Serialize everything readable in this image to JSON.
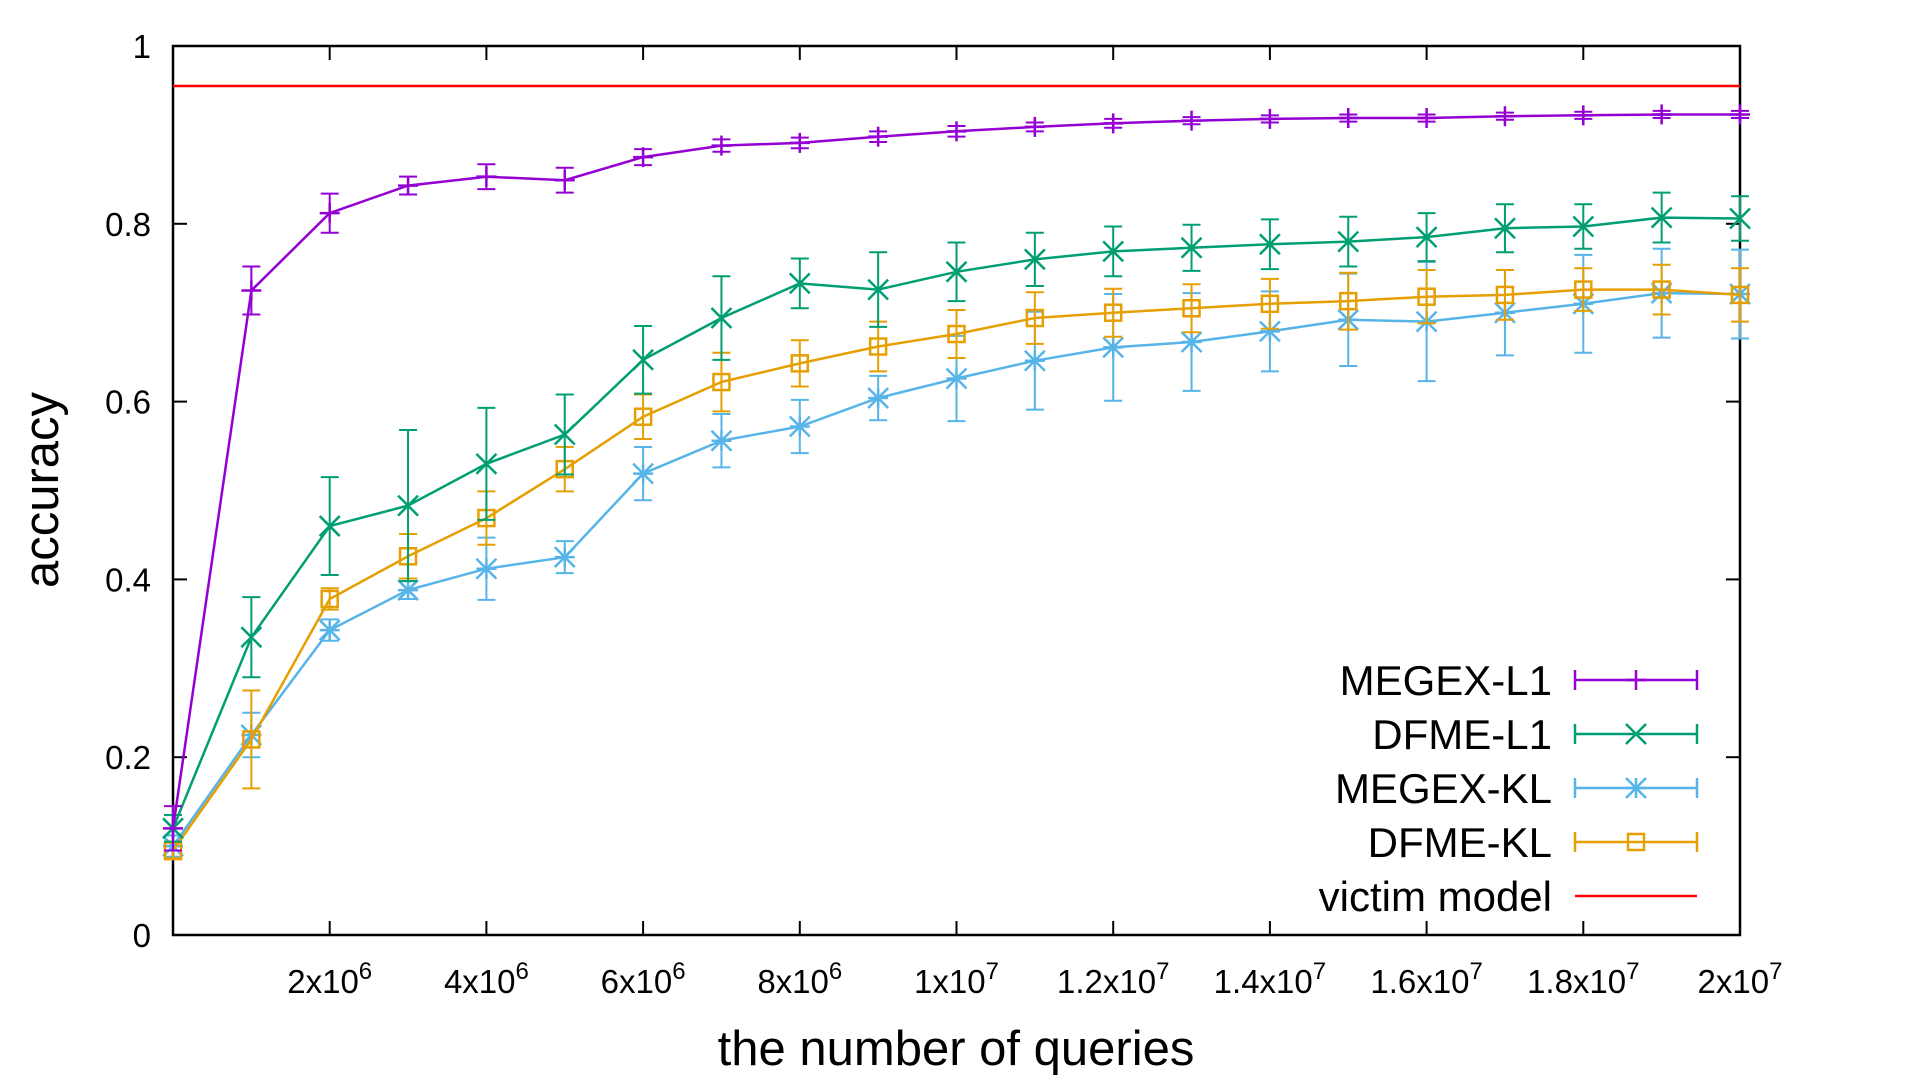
{
  "chart_data": {
    "type": "line",
    "title": "",
    "xlabel": "the number of queries",
    "ylabel": "accuracy",
    "xlim": [
      0,
      20000000
    ],
    "ylim": [
      0,
      1
    ],
    "x_ticks": [
      {
        "value": 2000000,
        "base": "2x10",
        "exp": "6"
      },
      {
        "value": 4000000,
        "base": "4x10",
        "exp": "6"
      },
      {
        "value": 6000000,
        "base": "6x10",
        "exp": "6"
      },
      {
        "value": 8000000,
        "base": "8x10",
        "exp": "6"
      },
      {
        "value": 10000000,
        "base": "1x10",
        "exp": "7"
      },
      {
        "value": 12000000,
        "base": "1.2x10",
        "exp": "7"
      },
      {
        "value": 14000000,
        "base": "1.4x10",
        "exp": "7"
      },
      {
        "value": 16000000,
        "base": "1.6x10",
        "exp": "7"
      },
      {
        "value": 18000000,
        "base": "1.8x10",
        "exp": "7"
      },
      {
        "value": 20000000,
        "base": "2x10",
        "exp": "7"
      }
    ],
    "y_ticks": [
      {
        "value": 0,
        "label": "0"
      },
      {
        "value": 0.2,
        "label": "0.2"
      },
      {
        "value": 0.4,
        "label": "0.4"
      },
      {
        "value": 0.6,
        "label": "0.6"
      },
      {
        "value": 0.8,
        "label": "0.8"
      },
      {
        "value": 1,
        "label": "1"
      }
    ],
    "grid": false,
    "legend_position": "bottom-right",
    "x": [
      0,
      1000000,
      2000000,
      3000000,
      4000000,
      5000000,
      6000000,
      7000000,
      8000000,
      9000000,
      10000000,
      11000000,
      12000000,
      13000000,
      14000000,
      15000000,
      16000000,
      17000000,
      18000000,
      19000000,
      20000000
    ],
    "series": [
      {
        "name": "MEGEX-L1",
        "color": "#9400d3",
        "marker": "plus",
        "values": [
          0.12,
          0.725,
          0.812,
          0.843,
          0.853,
          0.849,
          0.875,
          0.888,
          0.891,
          0.898,
          0.904,
          0.909,
          0.913,
          0.916,
          0.918,
          0.919,
          0.919,
          0.921,
          0.922,
          0.923,
          0.923
        ],
        "errors": [
          0.025,
          0.027,
          0.022,
          0.01,
          0.014,
          0.014,
          0.009,
          0.007,
          0.006,
          0.006,
          0.006,
          0.005,
          0.005,
          0.004,
          0.004,
          0.004,
          0.004,
          0.004,
          0.004,
          0.004,
          0.004
        ]
      },
      {
        "name": "DFME-L1",
        "color": "#009e73",
        "marker": "cross",
        "values": [
          0.12,
          0.335,
          0.46,
          0.483,
          0.53,
          0.563,
          0.647,
          0.694,
          0.733,
          0.726,
          0.746,
          0.76,
          0.769,
          0.773,
          0.777,
          0.78,
          0.785,
          0.795,
          0.797,
          0.807,
          0.806
        ],
        "errors": [
          0.015,
          0.045,
          0.055,
          0.085,
          0.063,
          0.045,
          0.038,
          0.047,
          0.028,
          0.042,
          0.033,
          0.03,
          0.028,
          0.026,
          0.028,
          0.028,
          0.027,
          0.027,
          0.025,
          0.028,
          0.025
        ]
      },
      {
        "name": "MEGEX-KL",
        "color": "#56b4e9",
        "marker": "star",
        "values": [
          0.1,
          0.225,
          0.343,
          0.388,
          0.412,
          0.425,
          0.519,
          0.556,
          0.572,
          0.604,
          0.626,
          0.646,
          0.661,
          0.667,
          0.679,
          0.692,
          0.69,
          0.7,
          0.71,
          0.722,
          0.721
        ],
        "errors": [
          0.012,
          0.025,
          0.012,
          0.01,
          0.035,
          0.018,
          0.03,
          0.03,
          0.03,
          0.025,
          0.048,
          0.055,
          0.06,
          0.055,
          0.045,
          0.052,
          0.067,
          0.048,
          0.055,
          0.05,
          0.05
        ]
      },
      {
        "name": "DFME-KL",
        "color": "#e69f00",
        "marker": "square",
        "values": [
          0.095,
          0.22,
          0.378,
          0.426,
          0.469,
          0.524,
          0.583,
          0.622,
          0.643,
          0.662,
          0.676,
          0.694,
          0.7,
          0.705,
          0.71,
          0.713,
          0.718,
          0.72,
          0.726,
          0.726,
          0.72
        ],
        "errors": [
          0.01,
          0.055,
          0.012,
          0.025,
          0.03,
          0.025,
          0.025,
          0.033,
          0.026,
          0.028,
          0.027,
          0.029,
          0.027,
          0.027,
          0.028,
          0.032,
          0.03,
          0.028,
          0.024,
          0.028,
          0.03
        ]
      },
      {
        "name": "victim model",
        "color": "#ff0000",
        "marker": "none",
        "constant": 0.955
      }
    ]
  }
}
